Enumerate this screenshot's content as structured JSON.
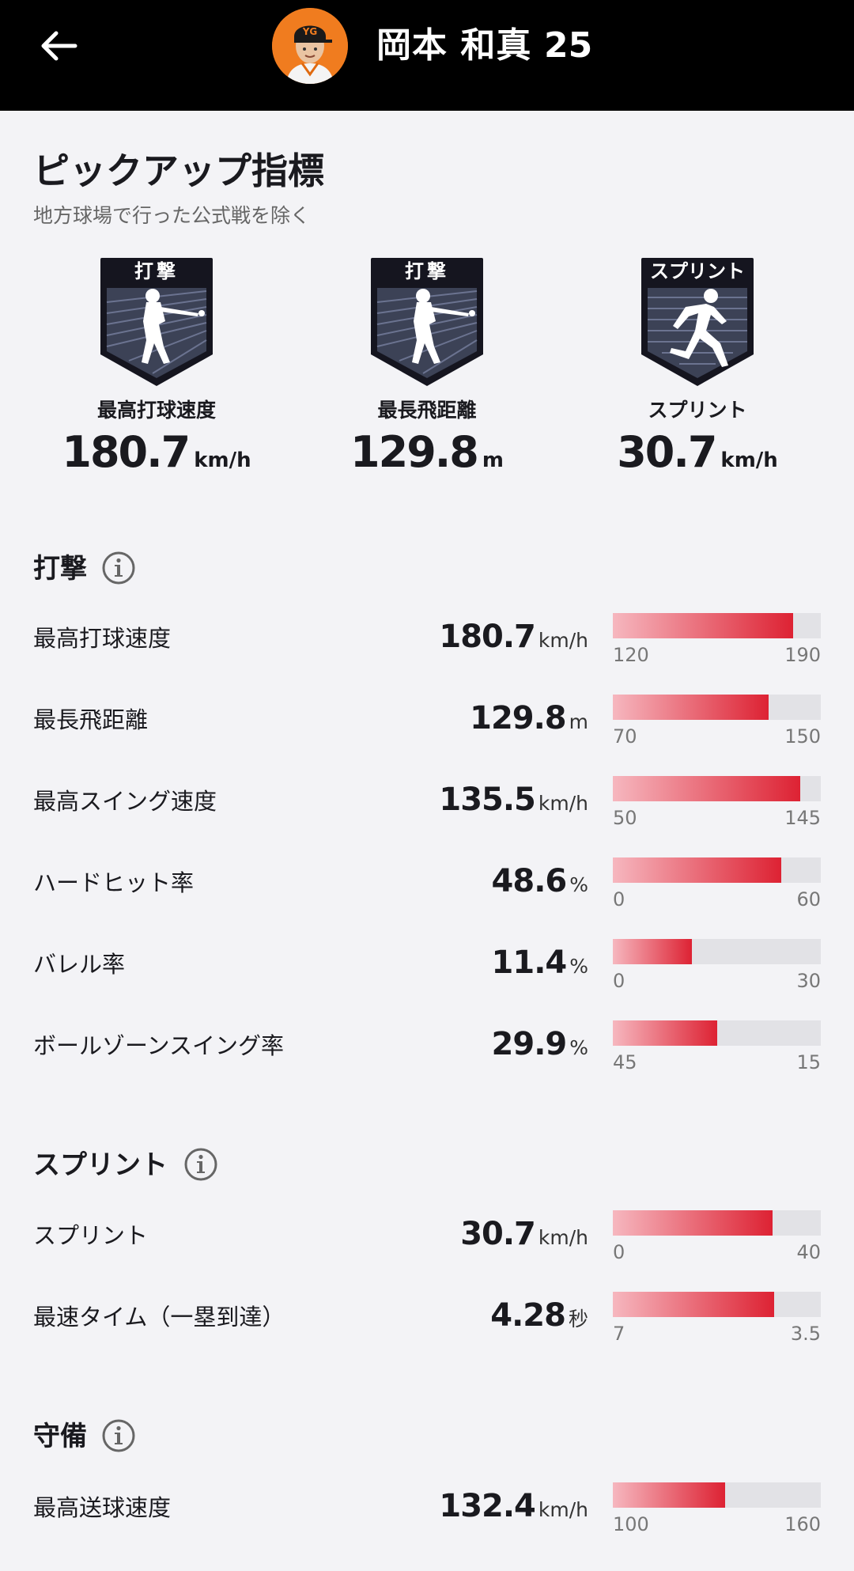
{
  "header": {
    "player_name": "岡本 和真",
    "player_number": "25"
  },
  "pickup": {
    "title": "ピックアップ指標",
    "note": "地方球場で行った公式戦を除く",
    "cards": [
      {
        "badge": "打撃",
        "label": "最高打球速度",
        "value": "180.7",
        "unit": "km/h"
      },
      {
        "badge": "打撃",
        "label": "最長飛距離",
        "value": "129.8",
        "unit": "m"
      },
      {
        "badge": "スプリント",
        "label": "スプリント",
        "value": "30.7",
        "unit": "km/h"
      }
    ]
  },
  "sections": [
    {
      "title": "打撃",
      "metrics": [
        {
          "label": "最高打球速度",
          "value": "180.7",
          "unit": "km/h",
          "min": "120",
          "max": "190",
          "fill": 0.868
        },
        {
          "label": "最長飛距離",
          "value": "129.8",
          "unit": "m",
          "min": "70",
          "max": "150",
          "fill": 0.748
        },
        {
          "label": "最高スイング速度",
          "value": "135.5",
          "unit": "km/h",
          "min": "50",
          "max": "145",
          "fill": 0.9
        },
        {
          "label": "ハードヒット率",
          "value": "48.6",
          "unit": "%",
          "min": "0",
          "max": "60",
          "fill": 0.81
        },
        {
          "label": "バレル率",
          "value": "11.4",
          "unit": "%",
          "min": "0",
          "max": "30",
          "fill": 0.38
        },
        {
          "label": "ボールゾーンスイング率",
          "value": "29.9",
          "unit": "%",
          "min": "45",
          "max": "15",
          "fill": 0.503
        }
      ]
    },
    {
      "title": "スプリント",
      "metrics": [
        {
          "label": "スプリント",
          "value": "30.7",
          "unit": "km/h",
          "min": "0",
          "max": "40",
          "fill": 0.768
        },
        {
          "label": "最速タイム（一塁到達）",
          "value": "4.28",
          "unit": "秒",
          "min": "7",
          "max": "3.5",
          "fill": 0.777
        }
      ]
    },
    {
      "title": "守備",
      "metrics": [
        {
          "label": "最高送球速度",
          "value": "132.4",
          "unit": "km/h",
          "min": "100",
          "max": "160",
          "fill": 0.54
        }
      ]
    }
  ],
  "colors": {
    "header_bg": "#000000",
    "page_bg": "#f3f3f6",
    "bar_track": "#e2e2e6",
    "bar_fill_start": "#f6b7bf",
    "bar_fill_end": "#dd2233",
    "badge_bg": "#15151f",
    "avatar_bg": "#f07c1f"
  },
  "icons": {
    "back": "arrow-left-icon",
    "info": "info-circle-icon",
    "batting_badge": "batter-silhouette-icon",
    "sprint_badge": "runner-silhouette-icon"
  }
}
